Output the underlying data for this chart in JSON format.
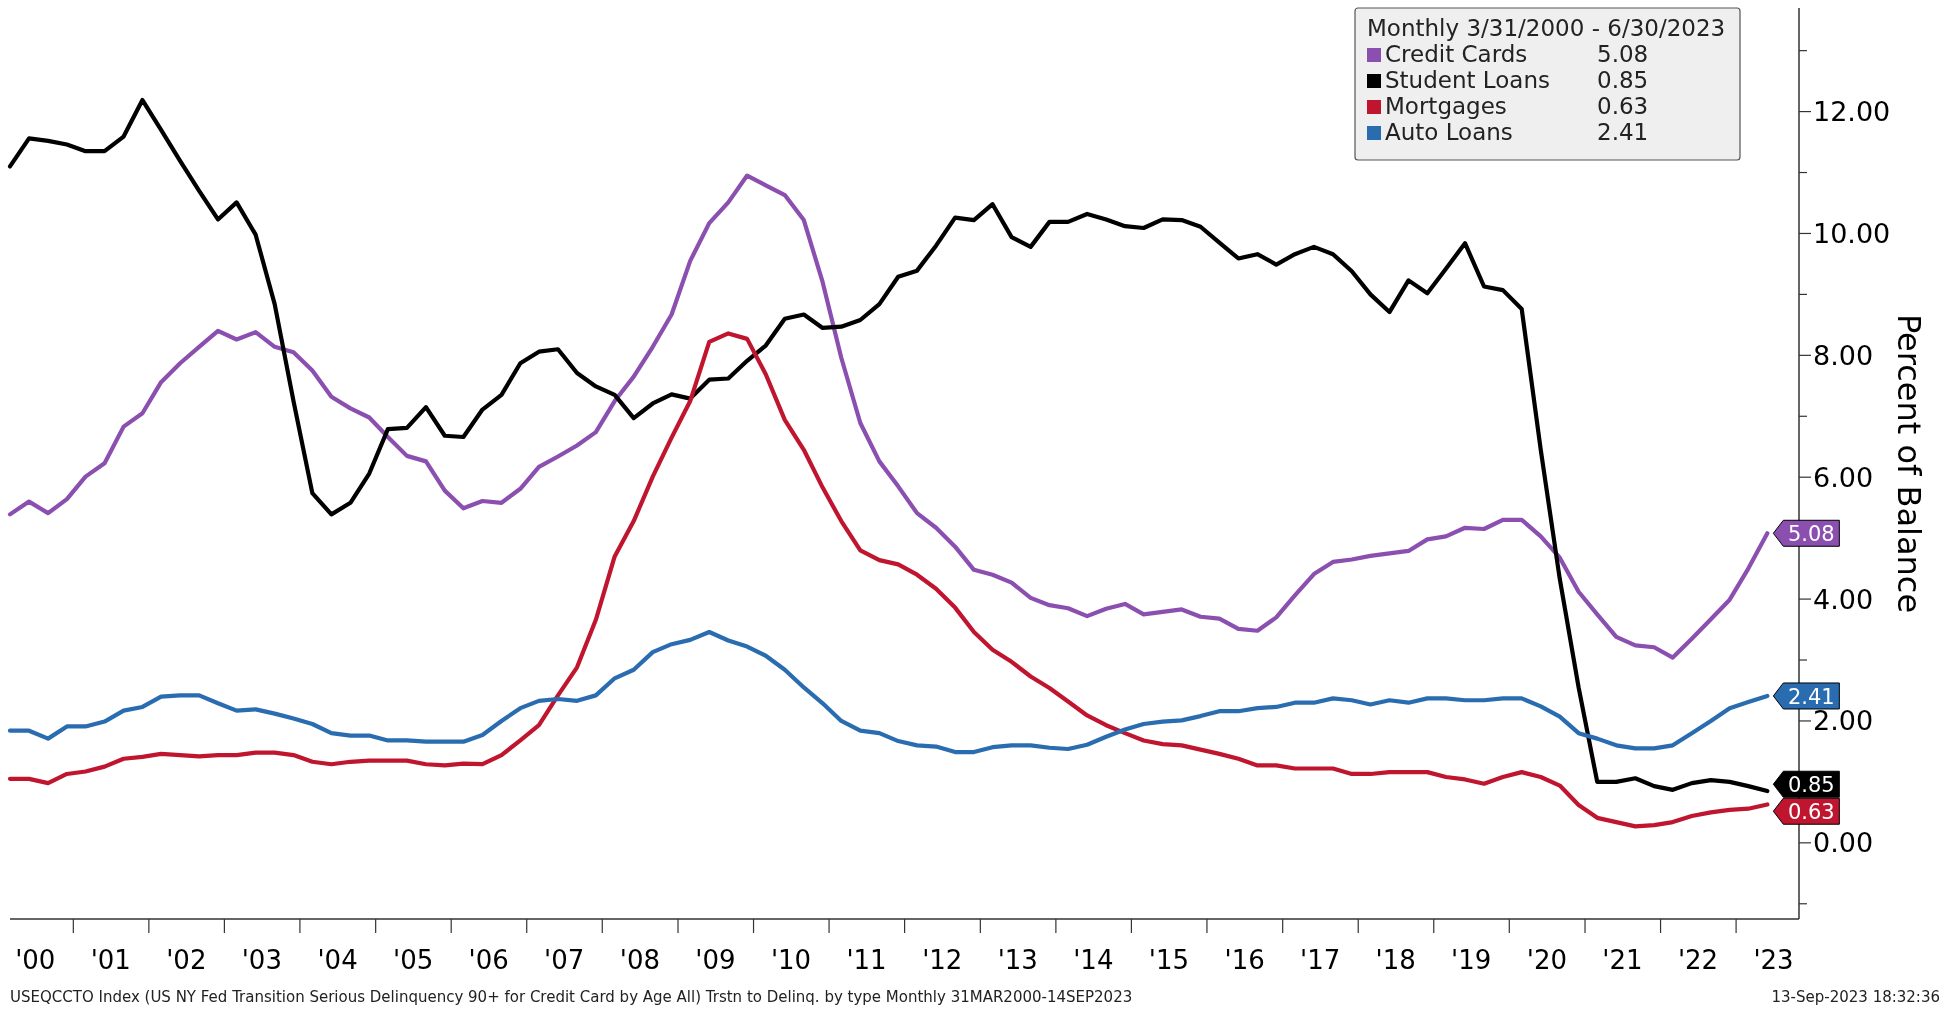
{
  "chart_data": {
    "type": "line",
    "legend_title": "Monthly 3/31/2000 - 6/30/2023",
    "ylabel": "Percent of Balance",
    "annotations": [
      "USEQCCTO Index (US NY Fed Transition Serious Delinquency 90+ for Credit Card by Age All) Trstn to Delinq. by type  Monthly 31MAR2000-14SEP2023",
      "13-Sep-2023 18:32:36"
    ],
    "x": [
      "2000-03",
      "2000-06",
      "2000-09",
      "2000-12",
      "2001-03",
      "2001-06",
      "2001-09",
      "2001-12",
      "2002-03",
      "2002-06",
      "2002-09",
      "2002-12",
      "2003-03",
      "2003-06",
      "2003-09",
      "2003-12",
      "2004-03",
      "2004-06",
      "2004-09",
      "2004-12",
      "2005-03",
      "2005-06",
      "2005-09",
      "2005-12",
      "2006-03",
      "2006-06",
      "2006-09",
      "2006-12",
      "2007-03",
      "2007-06",
      "2007-09",
      "2007-12",
      "2008-03",
      "2008-06",
      "2008-09",
      "2008-12",
      "2009-03",
      "2009-06",
      "2009-09",
      "2009-12",
      "2010-03",
      "2010-06",
      "2010-09",
      "2010-12",
      "2011-03",
      "2011-06",
      "2011-09",
      "2011-12",
      "2012-03",
      "2012-06",
      "2012-09",
      "2012-12",
      "2013-03",
      "2013-06",
      "2013-09",
      "2013-12",
      "2014-03",
      "2014-06",
      "2014-09",
      "2014-12",
      "2015-03",
      "2015-06",
      "2015-09",
      "2015-12",
      "2016-03",
      "2016-06",
      "2016-09",
      "2016-12",
      "2017-03",
      "2017-06",
      "2017-09",
      "2017-12",
      "2018-03",
      "2018-06",
      "2018-09",
      "2018-12",
      "2019-03",
      "2019-06",
      "2019-09",
      "2019-12",
      "2020-03",
      "2020-06",
      "2020-09",
      "2020-12",
      "2021-03",
      "2021-06",
      "2021-09",
      "2021-12",
      "2022-03",
      "2022-06",
      "2022-09",
      "2022-12",
      "2023-03",
      "2023-06"
    ],
    "series": [
      {
        "name": "Credit Cards",
        "color": "#8b4fb0",
        "values": [
          5.39,
          5.6,
          5.41,
          5.64,
          6.01,
          6.23,
          6.83,
          7.05,
          7.56,
          7.87,
          8.14,
          8.4,
          8.26,
          8.38,
          8.14,
          8.05,
          7.75,
          7.32,
          7.13,
          6.98,
          6.66,
          6.35,
          6.26,
          5.78,
          5.49,
          5.61,
          5.58,
          5.81,
          6.17,
          6.34,
          6.52,
          6.74,
          7.25,
          7.65,
          8.14,
          8.67,
          9.55,
          10.17,
          10.51,
          10.95,
          10.79,
          10.63,
          10.22,
          9.2,
          7.96,
          6.89,
          6.26,
          5.85,
          5.41,
          5.17,
          4.86,
          4.48,
          4.4,
          4.27,
          4.02,
          3.9,
          3.85,
          3.72,
          3.84,
          3.92,
          3.75,
          3.79,
          3.83,
          3.71,
          3.68,
          3.51,
          3.48,
          3.7,
          4.06,
          4.41,
          4.61,
          4.65,
          4.71,
          4.75,
          4.79,
          4.98,
          5.03,
          5.17,
          5.15,
          5.3,
          5.3,
          5.03,
          4.68,
          4.12,
          3.75,
          3.38,
          3.24,
          3.21,
          3.04,
          3.35,
          3.67,
          3.99,
          4.5,
          5.08
        ],
        "value_labels": [
          null,
          null,
          null,
          null,
          null,
          null,
          null,
          null,
          null,
          null,
          null,
          null,
          null,
          null,
          null,
          null,
          null,
          null,
          null,
          null,
          null,
          null,
          null,
          null,
          null,
          null,
          null,
          null,
          null,
          null,
          null,
          null,
          null,
          null,
          null,
          null,
          null,
          null,
          null,
          null,
          null,
          null,
          null,
          null,
          null,
          null,
          null,
          null,
          null,
          null,
          null,
          null,
          null,
          null,
          null,
          null,
          null,
          null,
          null,
          null,
          null,
          null,
          null,
          null,
          null,
          null,
          null,
          null,
          null,
          null,
          null,
          null,
          null,
          null,
          null,
          null,
          null,
          null,
          null,
          null,
          null,
          null,
          null,
          null,
          null,
          null,
          null,
          null,
          null,
          null,
          null,
          null,
          null,
          "5.08"
        ]
      },
      {
        "name": "Student Loans",
        "color": "#000000",
        "values": [
          11.1,
          11.56,
          11.52,
          11.46,
          11.35,
          11.35,
          11.59,
          12.19,
          11.7,
          11.19,
          10.7,
          10.23,
          10.51,
          9.98,
          8.84,
          7.25,
          5.74,
          5.39,
          5.58,
          6.06,
          6.79,
          6.81,
          7.15,
          6.68,
          6.66,
          7.11,
          7.35,
          7.87,
          8.06,
          8.1,
          7.71,
          7.49,
          7.35,
          6.97,
          7.21,
          7.36,
          7.29,
          7.6,
          7.62,
          7.91,
          8.16,
          8.6,
          8.67,
          8.45,
          8.47,
          8.58,
          8.84,
          9.29,
          9.39,
          9.8,
          10.26,
          10.22,
          10.48,
          9.94,
          9.78,
          10.19,
          10.19,
          10.32,
          10.23,
          10.12,
          10.09,
          10.23,
          10.22,
          10.11,
          9.85,
          9.59,
          9.66,
          9.49,
          9.66,
          9.78,
          9.66,
          9.38,
          9.0,
          8.71,
          9.23,
          9.02,
          9.42,
          9.84,
          9.13,
          9.07,
          8.76,
          6.45,
          4.33,
          2.55,
          1.0,
          1.0,
          1.06,
          0.93,
          0.87,
          0.98,
          1.03,
          1.0,
          0.93,
          0.85
        ],
        "value_labels": [
          null,
          null,
          null,
          null,
          null,
          null,
          null,
          null,
          null,
          null,
          null,
          null,
          null,
          null,
          null,
          null,
          null,
          null,
          null,
          null,
          null,
          null,
          null,
          null,
          null,
          null,
          null,
          null,
          null,
          null,
          null,
          null,
          null,
          null,
          null,
          null,
          null,
          null,
          null,
          null,
          null,
          null,
          null,
          null,
          null,
          null,
          null,
          null,
          null,
          null,
          null,
          null,
          null,
          null,
          null,
          null,
          null,
          null,
          null,
          null,
          null,
          null,
          null,
          null,
          null,
          null,
          null,
          null,
          null,
          null,
          null,
          null,
          null,
          null,
          null,
          null,
          null,
          null,
          null,
          null,
          null,
          null,
          null,
          null,
          null,
          null,
          null,
          null,
          null,
          null,
          null,
          null,
          null,
          "0.85"
        ]
      },
      {
        "name": "Mortgages",
        "color": "#c0152f",
        "values": [
          1.05,
          1.05,
          0.98,
          1.13,
          1.17,
          1.25,
          1.38,
          1.41,
          1.46,
          1.44,
          1.42,
          1.44,
          1.44,
          1.48,
          1.48,
          1.44,
          1.33,
          1.29,
          1.33,
          1.35,
          1.35,
          1.35,
          1.29,
          1.27,
          1.3,
          1.29,
          1.44,
          1.68,
          1.93,
          2.42,
          2.88,
          3.66,
          4.7,
          5.28,
          6.01,
          6.65,
          7.25,
          8.22,
          8.36,
          8.27,
          7.69,
          6.94,
          6.45,
          5.83,
          5.28,
          4.8,
          4.64,
          4.57,
          4.4,
          4.17,
          3.86,
          3.46,
          3.17,
          2.97,
          2.73,
          2.54,
          2.32,
          2.09,
          1.93,
          1.8,
          1.68,
          1.62,
          1.6,
          1.53,
          1.46,
          1.38,
          1.27,
          1.27,
          1.22,
          1.22,
          1.22,
          1.13,
          1.13,
          1.16,
          1.16,
          1.16,
          1.08,
          1.04,
          0.97,
          1.08,
          1.16,
          1.08,
          0.94,
          0.62,
          0.41,
          0.34,
          0.27,
          0.29,
          0.34,
          0.44,
          0.5,
          0.54,
          0.56,
          0.63
        ],
        "value_labels": [
          null,
          null,
          null,
          null,
          null,
          null,
          null,
          null,
          null,
          null,
          null,
          null,
          null,
          null,
          null,
          null,
          null,
          null,
          null,
          null,
          null,
          null,
          null,
          null,
          null,
          null,
          null,
          null,
          null,
          null,
          null,
          null,
          null,
          null,
          null,
          null,
          null,
          null,
          null,
          null,
          null,
          null,
          null,
          null,
          null,
          null,
          null,
          null,
          null,
          null,
          null,
          null,
          null,
          null,
          null,
          null,
          null,
          null,
          null,
          null,
          null,
          null,
          null,
          null,
          null,
          null,
          null,
          null,
          null,
          null,
          null,
          null,
          null,
          null,
          null,
          null,
          null,
          null,
          null,
          null,
          null,
          null,
          null,
          null,
          null,
          null,
          null,
          null,
          null,
          null,
          null,
          null,
          null,
          "0.63"
        ]
      },
      {
        "name": "Auto Loans",
        "color": "#2a6cb0",
        "values": [
          1.84,
          1.84,
          1.71,
          1.91,
          1.91,
          1.99,
          2.17,
          2.23,
          2.4,
          2.42,
          2.42,
          2.29,
          2.17,
          2.19,
          2.12,
          2.04,
          1.95,
          1.8,
          1.76,
          1.76,
          1.68,
          1.68,
          1.66,
          1.66,
          1.66,
          1.77,
          2.0,
          2.21,
          2.33,
          2.36,
          2.33,
          2.42,
          2.7,
          2.84,
          3.13,
          3.26,
          3.33,
          3.46,
          3.32,
          3.22,
          3.07,
          2.84,
          2.55,
          2.29,
          2.0,
          1.84,
          1.8,
          1.67,
          1.6,
          1.58,
          1.49,
          1.49,
          1.57,
          1.6,
          1.6,
          1.56,
          1.54,
          1.61,
          1.74,
          1.86,
          1.95,
          1.99,
          2.01,
          2.08,
          2.16,
          2.16,
          2.21,
          2.23,
          2.3,
          2.3,
          2.37,
          2.34,
          2.27,
          2.34,
          2.3,
          2.37,
          2.37,
          2.34,
          2.34,
          2.37,
          2.37,
          2.24,
          2.07,
          1.8,
          1.71,
          1.6,
          1.55,
          1.55,
          1.6,
          1.8,
          2.0,
          2.21,
          2.31,
          2.41
        ],
        "value_labels": [
          null,
          null,
          null,
          null,
          null,
          null,
          null,
          null,
          null,
          null,
          null,
          null,
          null,
          null,
          null,
          null,
          null,
          null,
          null,
          null,
          null,
          null,
          null,
          null,
          null,
          null,
          null,
          null,
          null,
          null,
          null,
          null,
          null,
          null,
          null,
          null,
          null,
          null,
          null,
          null,
          null,
          null,
          null,
          null,
          null,
          null,
          null,
          null,
          null,
          null,
          null,
          null,
          null,
          null,
          null,
          null,
          null,
          null,
          null,
          null,
          null,
          null,
          null,
          null,
          null,
          null,
          null,
          null,
          null,
          null,
          null,
          null,
          null,
          null,
          null,
          null,
          null,
          null,
          null,
          null,
          null,
          null,
          null,
          null,
          null,
          null,
          null,
          null,
          null,
          null,
          null,
          null,
          null,
          "2.41"
        ]
      }
    ],
    "xlim": [
      "2000-03",
      "2023-11"
    ],
    "xticks": [
      {
        "value": "2000-07",
        "label": "'00"
      },
      {
        "value": "2001-01",
        "label": null
      },
      {
        "value": "2001-07",
        "label": "'01"
      },
      {
        "value": "2002-01",
        "label": null
      },
      {
        "value": "2002-07",
        "label": "'02"
      },
      {
        "value": "2003-01",
        "label": null
      },
      {
        "value": "2003-07",
        "label": "'03"
      },
      {
        "value": "2004-01",
        "label": null
      },
      {
        "value": "2004-07",
        "label": "'04"
      },
      {
        "value": "2005-01",
        "label": null
      },
      {
        "value": "2005-07",
        "label": "'05"
      },
      {
        "value": "2006-01",
        "label": null
      },
      {
        "value": "2006-07",
        "label": "'06"
      },
      {
        "value": "2007-01",
        "label": null
      },
      {
        "value": "2007-07",
        "label": "'07"
      },
      {
        "value": "2008-01",
        "label": null
      },
      {
        "value": "2008-07",
        "label": "'08"
      },
      {
        "value": "2009-01",
        "label": null
      },
      {
        "value": "2009-07",
        "label": "'09"
      },
      {
        "value": "2010-01",
        "label": null
      },
      {
        "value": "2010-07",
        "label": "'10"
      },
      {
        "value": "2011-01",
        "label": null
      },
      {
        "value": "2011-07",
        "label": "'11"
      },
      {
        "value": "2012-01",
        "label": null
      },
      {
        "value": "2012-07",
        "label": "'12"
      },
      {
        "value": "2013-01",
        "label": null
      },
      {
        "value": "2013-07",
        "label": "'13"
      },
      {
        "value": "2014-01",
        "label": null
      },
      {
        "value": "2014-07",
        "label": "'14"
      },
      {
        "value": "2015-01",
        "label": null
      },
      {
        "value": "2015-07",
        "label": "'15"
      },
      {
        "value": "2016-01",
        "label": null
      },
      {
        "value": "2016-07",
        "label": "'16"
      },
      {
        "value": "2017-01",
        "label": null
      },
      {
        "value": "2017-07",
        "label": "'17"
      },
      {
        "value": "2018-01",
        "label": null
      },
      {
        "value": "2018-07",
        "label": "'18"
      },
      {
        "value": "2019-01",
        "label": null
      },
      {
        "value": "2019-07",
        "label": "'19"
      },
      {
        "value": "2020-01",
        "label": null
      },
      {
        "value": "2020-07",
        "label": "'20"
      },
      {
        "value": "2021-01",
        "label": null
      },
      {
        "value": "2021-07",
        "label": "'21"
      },
      {
        "value": "2022-01",
        "label": null
      },
      {
        "value": "2022-07",
        "label": "'22"
      },
      {
        "value": "2023-01",
        "label": null
      },
      {
        "value": "2023-07",
        "label": "'23"
      }
    ],
    "ylim": [
      -1.25,
      13.7
    ],
    "yticks": [
      {
        "value": -1,
        "label": null
      },
      {
        "value": 0,
        "label": "0.00"
      },
      {
        "value": 1,
        "label": null
      },
      {
        "value": 2,
        "label": "2.00"
      },
      {
        "value": 3,
        "label": null
      },
      {
        "value": 4,
        "label": "4.00"
      },
      {
        "value": 5,
        "label": null
      },
      {
        "value": 6,
        "label": "6.00"
      },
      {
        "value": 7,
        "label": null
      },
      {
        "value": 8,
        "label": "8.00"
      },
      {
        "value": 9,
        "label": null
      },
      {
        "value": 10,
        "label": "10.00"
      },
      {
        "value": 11,
        "label": null
      },
      {
        "value": 12,
        "label": "12.00"
      },
      {
        "value": 13,
        "label": null
      }
    ],
    "legend": "top right",
    "grid": false,
    "marker": "none",
    "line_style": "solid"
  }
}
